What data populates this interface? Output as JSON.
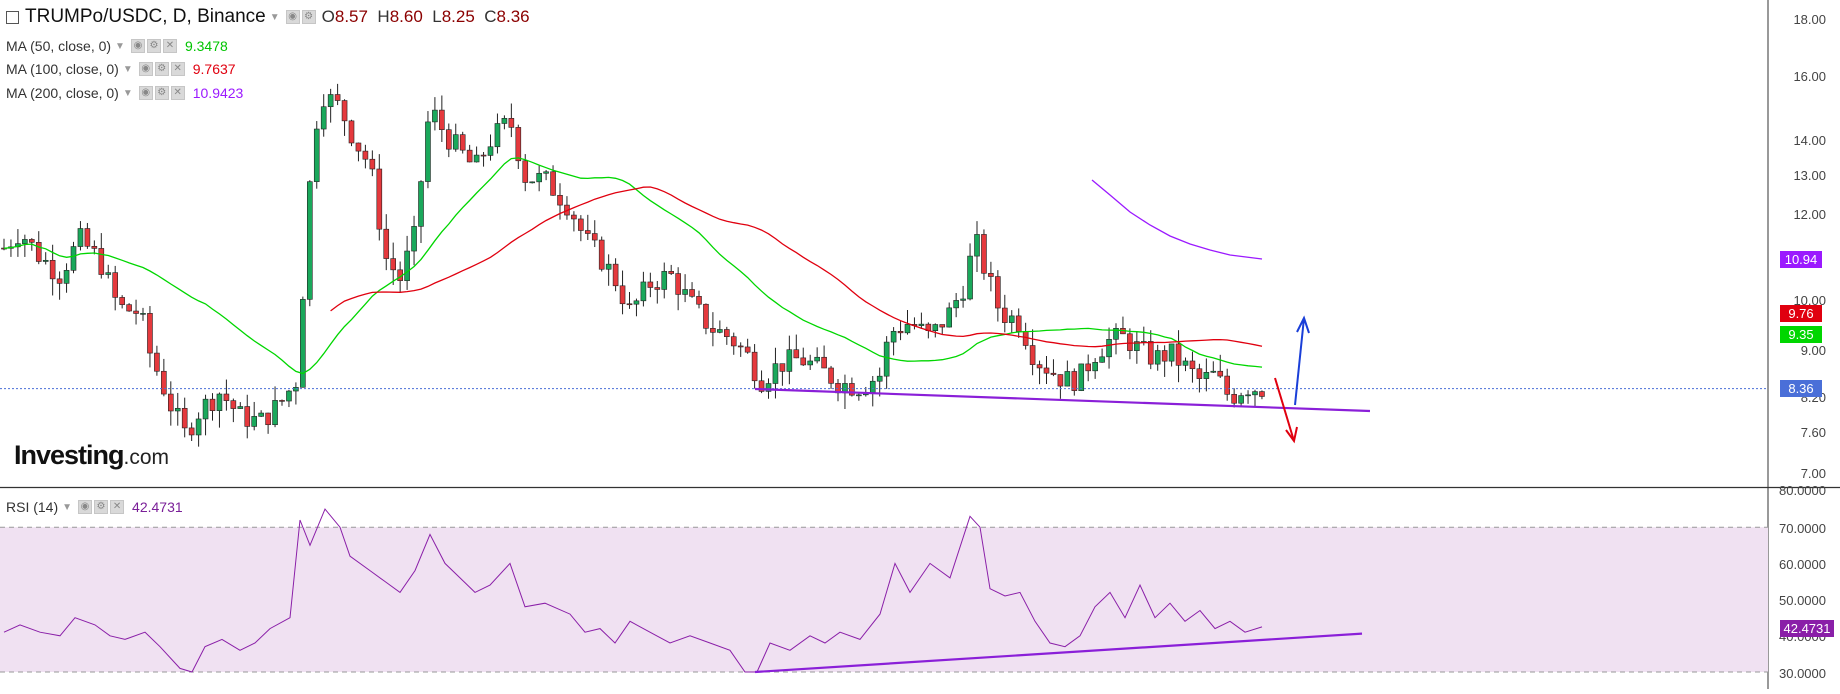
{
  "header": {
    "symbol": "TRUMPo/USDC, D, Binance",
    "ohlc": {
      "o_label": "O",
      "o": "8.57",
      "h_label": "H",
      "h": "8.60",
      "l_label": "L",
      "l": "8.25",
      "c_label": "C",
      "c": "8.36"
    }
  },
  "indicators": [
    {
      "label": "MA (50, close, 0)",
      "value": "9.3478",
      "color": "#00d600"
    },
    {
      "label": "MA (100, close, 0)",
      "value": "9.7637",
      "color": "#e0000f"
    },
    {
      "label": "MA (200, close, 0)",
      "value": "10.9423",
      "color": "#9b19ff"
    }
  ],
  "rsi": {
    "label": "RSI (14)",
    "value": "42.4731",
    "color": "#8a1fa8"
  },
  "logo": {
    "main": "Investing",
    "suffix": ".com"
  },
  "price_axis": {
    "ticks": [
      "18.00",
      "16.00",
      "14.00",
      "13.00",
      "12.00",
      "10.00",
      "9.00",
      "8.20",
      "7.60",
      "7.00"
    ],
    "tags": [
      {
        "label": "10.94",
        "color": "#9b19ff"
      },
      {
        "label": "9.76",
        "color": "#e0000f"
      },
      {
        "label": "9.35",
        "color": "#00d600"
      },
      {
        "label": "8.36",
        "color": "#4a6fd8"
      }
    ]
  },
  "rsi_axis": {
    "ticks": [
      "80.0000",
      "70.0000",
      "60.0000",
      "50.0000",
      "40.0000",
      "30.0000"
    ],
    "tag": {
      "label": "42.4731",
      "color": "#8a1fa8"
    }
  },
  "colors": {
    "up": "#1aa85b",
    "down": "#e5393d",
    "grid": "#e6e6e6",
    "trendline": "#8a1fd8",
    "up_arrow": "#1a3fd8",
    "down_arrow": "#e0000f",
    "rsi_band": "#f0e1f2",
    "current_price_line": "#4a6fd8"
  },
  "chart_data": [
    {
      "type": "candlestick",
      "title": "TRUMPo/USDC, D, Binance",
      "ylim": [
        7.0,
        18.0
      ],
      "y_scale": "log",
      "series": [
        {
          "name": "MA (50, close, 0)",
          "last": 9.3478
        },
        {
          "name": "MA (100, close, 0)",
          "last": 9.7637
        },
        {
          "name": "MA (200, close, 0)",
          "last": 10.9423
        }
      ],
      "last_close": 8.36,
      "ohlc_last": {
        "open": 8.57,
        "high": 8.6,
        "low": 8.25,
        "close": 8.36
      }
    },
    {
      "type": "line",
      "title": "RSI (14)",
      "ylim": [
        30,
        80
      ],
      "levels": [
        70,
        30
      ],
      "last": 42.4731
    }
  ]
}
